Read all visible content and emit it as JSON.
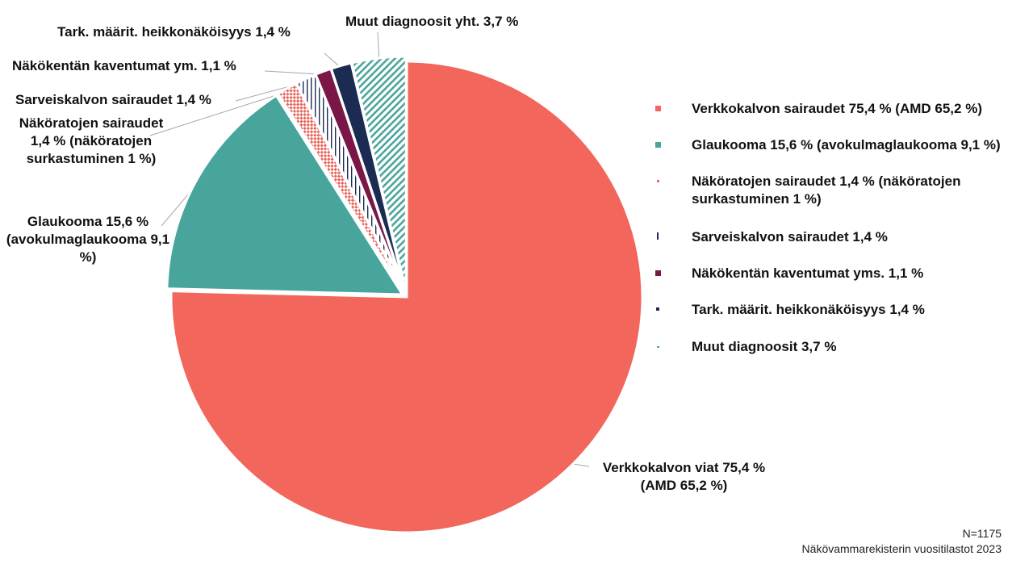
{
  "chart_data": {
    "type": "pie",
    "n_label": "N=1175",
    "source": "Näkövammarekisterin vuositilastot 2023",
    "slices": [
      {
        "key": "muut",
        "value": 3.7,
        "color": "#4aa59c",
        "pattern": "diag",
        "label": "Muut diagnoosit yht. 3,7 %",
        "legend": "Muut diagnoosit 3,7 %"
      },
      {
        "key": "tark",
        "value": 1.4,
        "color": "#1b2b52",
        "pattern": "solid",
        "label": "Tark. määrit. heikkonäköisyys 1,4 %",
        "legend": "Tark. määrit. heikkonäköisyys 1,4 %"
      },
      {
        "key": "kentta",
        "value": 1.1,
        "color": "#7a1747",
        "pattern": "solid",
        "label": "Näkökentän kaventumat ym. 1,1 %",
        "legend": "Näkökentän kaventumat yms. 1,1 %"
      },
      {
        "key": "sarveis",
        "value": 1.4,
        "color": "#1b2b52",
        "pattern": "vlines",
        "label": "Sarveiskalvon sairaudet 1,4 %",
        "legend": "Sarveiskalvon sairaudet 1,4 %"
      },
      {
        "key": "nakorata",
        "value": 1.4,
        "color": "#e8675d",
        "pattern": "check",
        "label": "Näköratojen sairaudet 1,4 % (näköratojen surkastuminen 1 %)",
        "legend": "Näköratojen sairaudet 1,4 % (näköratojen surkastuminen 1 %)"
      },
      {
        "key": "glaukooma",
        "value": 15.6,
        "color": "#48a59b",
        "pattern": "solid",
        "label": "Glaukooma 15,6 % (avokulmaglaukooma 9,1 %)",
        "legend": "Glaukooma 15,6 % (avokulmaglaukooma 9,1 %)"
      },
      {
        "key": "verkkokalvo",
        "value": 75.4,
        "color": "#f2665c",
        "pattern": "solid",
        "label": "Verkkokalvon viat 75,4 % (AMD 65,2 %)",
        "legend": "Verkkokalvon sairaudet 75,4 % (AMD 65,2 %)"
      }
    ]
  }
}
